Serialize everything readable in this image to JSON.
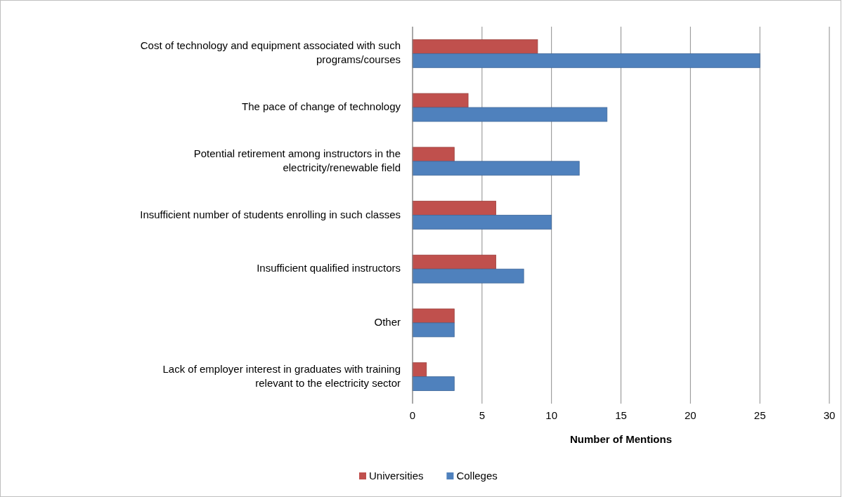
{
  "chart_data": {
    "type": "bar",
    "orientation": "horizontal",
    "xlabel": "Number of Mentions",
    "categories": [
      "Cost of technology and equipment associated with such programs/courses",
      "The pace of change of technology",
      "Potential retirement among instructors in the electricity/renewable field",
      "Insufficient number of students enrolling in such classes",
      "Insufficient qualified instructors",
      "Other",
      "Lack of employer interest in graduates with training relevant to the electricity sector"
    ],
    "series": [
      {
        "name": "Universities",
        "color": "#c0504d",
        "values": [
          9,
          4,
          3,
          6,
          6,
          3,
          1
        ]
      },
      {
        "name": "Colleges",
        "color": "#4f81bd",
        "values": [
          25,
          14,
          12,
          10,
          8,
          3,
          3
        ]
      }
    ],
    "xlim": [
      0,
      30
    ],
    "xticks": [
      0,
      5,
      10,
      15,
      20,
      25,
      30
    ],
    "grid": "x",
    "legend": "bottom"
  }
}
